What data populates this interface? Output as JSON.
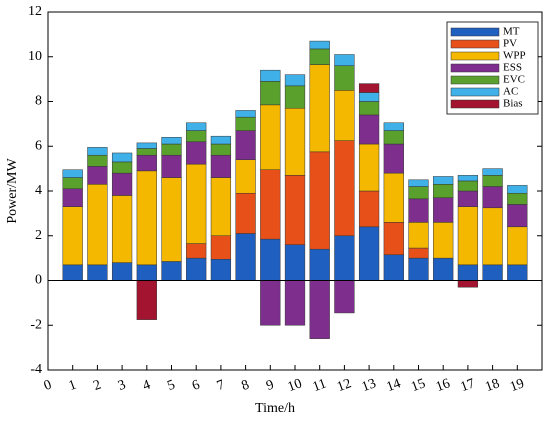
{
  "chart_data": {
    "type": "stacked_bar",
    "x_label": "Time/h",
    "y_label": "Power/MW",
    "x": [
      1,
      2,
      3,
      4,
      5,
      6,
      7,
      8,
      9,
      10,
      11,
      12,
      13,
      14,
      15,
      16,
      17,
      18,
      19
    ],
    "xlim": [
      0,
      20
    ],
    "xticks": [
      0,
      1,
      2,
      3,
      4,
      5,
      6,
      7,
      8,
      9,
      10,
      11,
      12,
      13,
      14,
      15,
      16,
      17,
      18,
      19
    ],
    "ylim": [
      -4,
      12
    ],
    "yticks": [
      -4,
      -2,
      0,
      2,
      4,
      6,
      8,
      10,
      12
    ],
    "legend": "upper right",
    "series": [
      {
        "name": "MT",
        "color": "#1f5fbf",
        "values": [
          0.7,
          0.7,
          0.8,
          0.7,
          0.85,
          1.0,
          0.95,
          2.1,
          1.85,
          1.6,
          1.4,
          2.0,
          2.4,
          1.15,
          1.0,
          1.0,
          0.7,
          0.7,
          0.7
        ]
      },
      {
        "name": "PV",
        "color": "#e8501a",
        "values": [
          0,
          0,
          0,
          0,
          0,
          0.65,
          1.05,
          1.8,
          3.1,
          3.1,
          4.35,
          4.25,
          1.6,
          1.45,
          0.45,
          0,
          0,
          0,
          0
        ]
      },
      {
        "name": "WPP",
        "color": "#f5b800",
        "values": [
          2.6,
          3.6,
          3.0,
          4.2,
          3.75,
          3.55,
          2.6,
          1.5,
          2.9,
          3.0,
          3.9,
          2.25,
          2.1,
          2.2,
          1.15,
          1.6,
          2.6,
          2.55,
          1.7
        ]
      },
      {
        "name": "ESS",
        "color": "#7e2f8e",
        "values": [
          0.8,
          0.8,
          1.0,
          0.7,
          1.0,
          1.0,
          1.0,
          1.3,
          -2.0,
          -2.0,
          -2.6,
          -1.45,
          1.3,
          1.3,
          1.05,
          1.1,
          0.7,
          0.95,
          1.0
        ]
      },
      {
        "name": "EVC",
        "color": "#5aa02c",
        "values": [
          0.5,
          0.5,
          0.5,
          0.3,
          0.5,
          0.5,
          0.5,
          0.6,
          1.05,
          1.0,
          0.7,
          1.1,
          0.6,
          0.6,
          0.55,
          0.6,
          0.45,
          0.5,
          0.5
        ]
      },
      {
        "name": "AC",
        "color": "#3fb0e8",
        "values": [
          0.35,
          0.35,
          0.4,
          0.25,
          0.3,
          0.35,
          0.35,
          0.3,
          0.5,
          0.5,
          0.35,
          0.5,
          0.4,
          0.35,
          0.3,
          0.35,
          0.25,
          0.3,
          0.35
        ]
      },
      {
        "name": "Bias",
        "color": "#a2142f",
        "values": [
          0,
          0,
          0,
          -1.75,
          0,
          0,
          0,
          0,
          0,
          0,
          0,
          0,
          0.4,
          0,
          0,
          0,
          -0.3,
          0,
          0
        ]
      }
    ]
  }
}
